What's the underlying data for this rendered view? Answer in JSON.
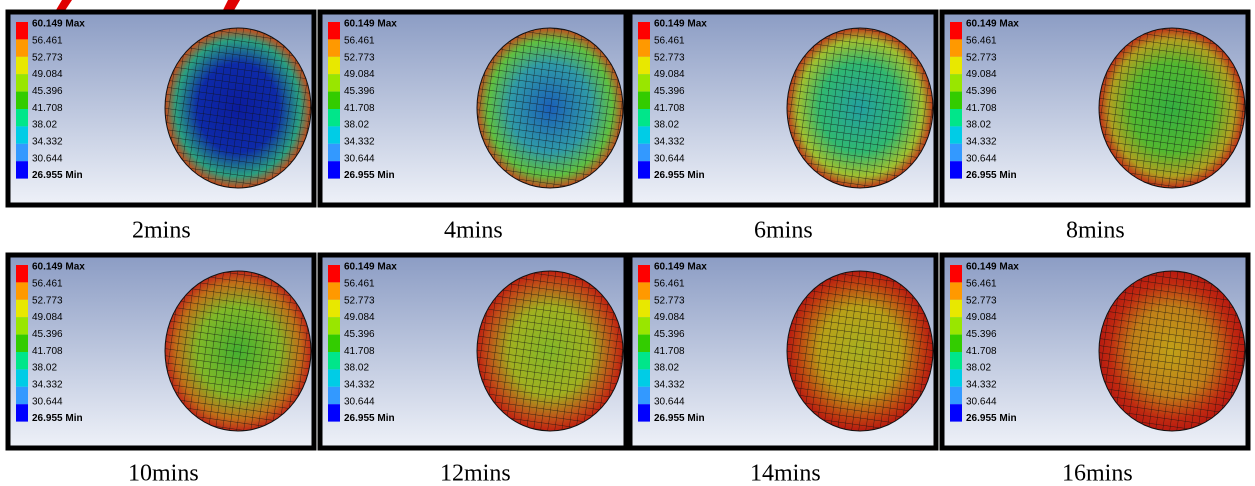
{
  "legend": [
    "60.149 Max",
    "56.461",
    "52.773",
    "49.084",
    "45.396",
    "41.708",
    "38.02",
    "34.332",
    "30.644",
    "26.955 Min"
  ],
  "panels": [
    {
      "caption": "2mins"
    },
    {
      "caption": "4mins"
    },
    {
      "caption": "6mins"
    },
    {
      "caption": "8mins"
    },
    {
      "caption": "10mins"
    },
    {
      "caption": "12mins"
    },
    {
      "caption": "14mins"
    },
    {
      "caption": "16mins"
    }
  ]
}
